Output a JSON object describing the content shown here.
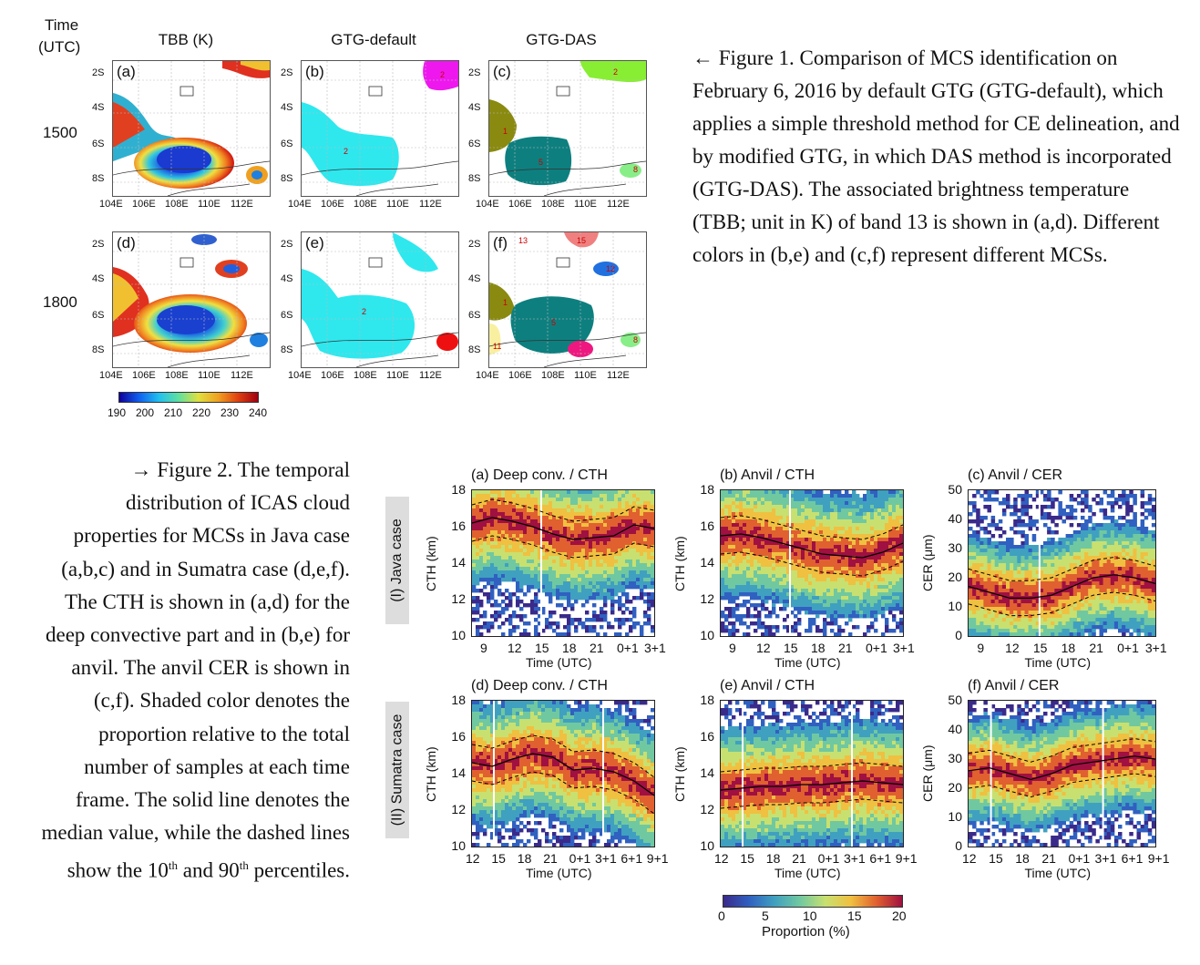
{
  "fig1": {
    "time_header": "Time",
    "utc_header": "(UTC)",
    "col_headers": [
      "TBB (K)",
      "GTG-default",
      "GTG-DAS"
    ],
    "rows": [
      "1500",
      "1800"
    ],
    "panel_tags": [
      "(a)",
      "(b)",
      "(c)",
      "(d)",
      "(e)",
      "(f)"
    ],
    "lat_ticks": [
      "2S",
      "4S",
      "6S",
      "8S"
    ],
    "lon_ticks": [
      "104E",
      "106E",
      "108E",
      "110E",
      "112E"
    ],
    "mcs_labels": {
      "b": [
        "2",
        "2"
      ],
      "c": [
        "2",
        "1",
        "5",
        "8"
      ],
      "e": [
        "2"
      ],
      "f": [
        "13",
        "15",
        "12",
        "1",
        "5",
        "11",
        "8"
      ]
    },
    "colorbar_ticks": [
      "190",
      "200",
      "210",
      "220",
      "230",
      "240"
    ],
    "caption": "← Figure 1. Comparison of MCS identification on February 6, 2016 by default GTG (GTG-default), which applies a simple threshold method for CE delineation, and by modified GTG, in which DAS method is incorporated (GTG-DAS). The associated brightness temperature (TBB; unit in K) of band 13 is shown in (a,d). Different colors in (b,e) and (c,f) represent different MCSs."
  },
  "fig2": {
    "caption_parts": {
      "p1": "→ Figure 2. The temporal distribution of ICAS cloud properties for MCSs in Java case (a,b,c) and in Sumatra case (d,e,f). The CTH is shown in (a,d) for the deep convective part and in (b,e) for anvil. The anvil CER is shown in (c,f). Shaded color denotes the proportion relative to the total number of samples at each time frame. The solid line denotes the median value, while the dashed lines show the 10",
      "sup1": "th",
      "p2": " and 90",
      "sup2": "th",
      "p3": " percentiles."
    },
    "row_tabs": [
      "(I) Java case",
      "(II) Sumatra case"
    ],
    "panel_titles": [
      "(a) Deep conv. / CTH",
      "(b) Anvil / CTH",
      "(c) Anvil / CER",
      "(d) Deep conv. / CTH",
      "(e) Anvil / CTH",
      "(f) Anvil / CER"
    ],
    "ylabel_cth": "CTH (km)",
    "ylabel_cer": "CER (μm)",
    "xlabel": "Time (UTC)",
    "cth_yticks": [
      "18",
      "16",
      "14",
      "12",
      "10"
    ],
    "cer_yticks": [
      "50",
      "40",
      "30",
      "20",
      "10",
      "0"
    ],
    "java_xticks": [
      "9",
      "12",
      "15",
      "18",
      "21",
      "0+1",
      "3+1"
    ],
    "sumatra_xticks": [
      "12",
      "15",
      "18",
      "21",
      "0+1",
      "3+1",
      "6+1",
      "9+1"
    ],
    "colorbar_ticks": [
      "0",
      "5",
      "10",
      "15",
      "20"
    ],
    "colorbar_label": "Proportion (%)"
  }
}
